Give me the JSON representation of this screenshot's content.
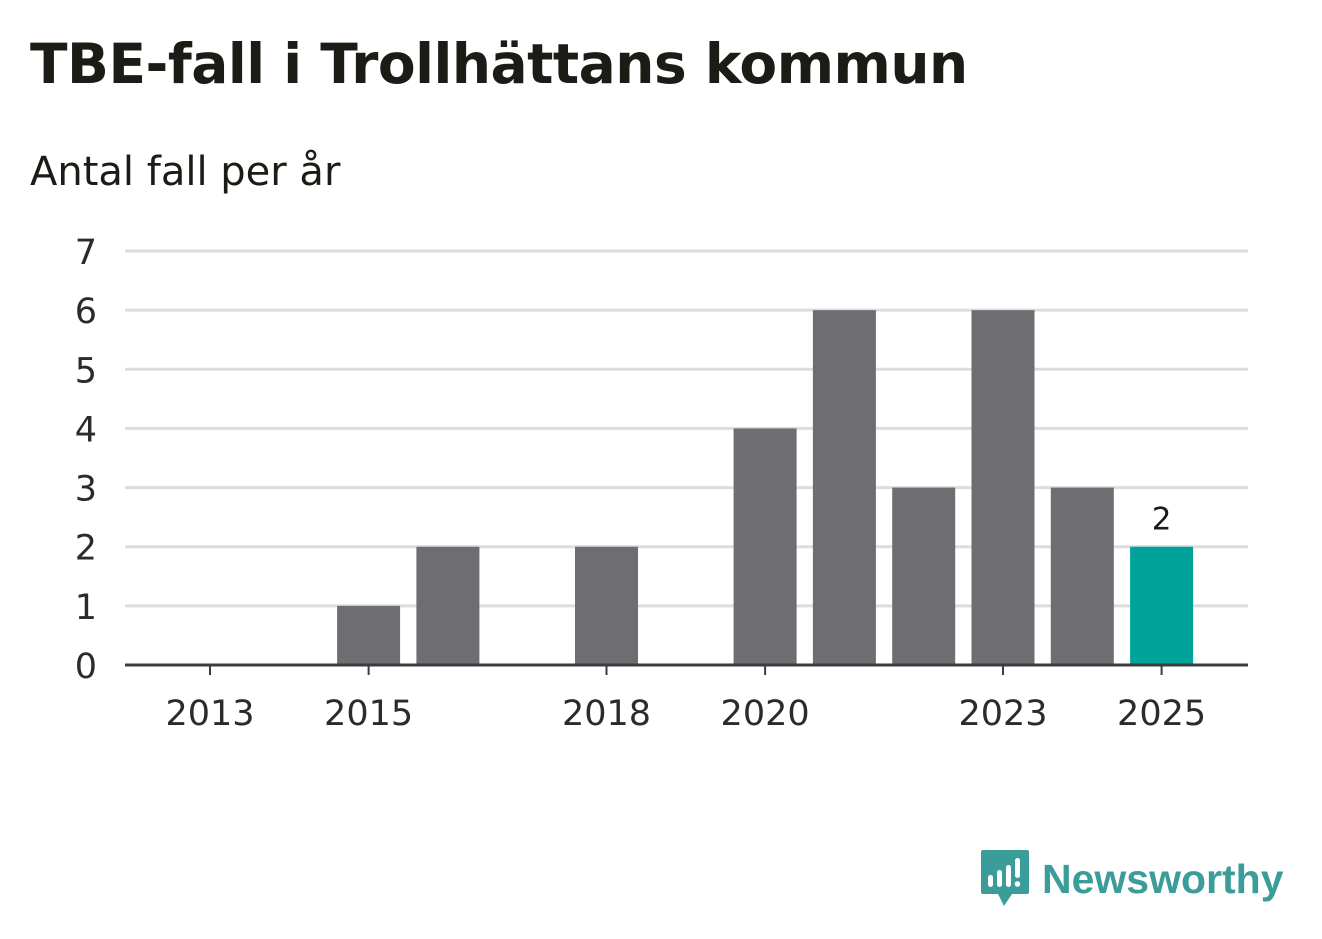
{
  "title": "TBE-fall i Trollhättans kommun",
  "subtitle": "Antal fall per år",
  "brand": {
    "name": "Newsworthy",
    "icon": "newsworthy-logo-icon",
    "color": "#3a9d99"
  },
  "colors": {
    "bar": "#6e6d72",
    "highlight": "#00a39a",
    "grid": "#dddddd",
    "axis": "#3c3c3c",
    "text": "#2b2b2b"
  },
  "chart_data": {
    "type": "bar",
    "title": "TBE-fall i Trollhättans kommun",
    "subtitle": "Antal fall per år",
    "xlabel": "",
    "ylabel": "",
    "categories": [
      2013,
      2014,
      2015,
      2016,
      2017,
      2018,
      2019,
      2020,
      2021,
      2022,
      2023,
      2024,
      2025
    ],
    "values": [
      0,
      0,
      1,
      2,
      0,
      2,
      0,
      4,
      6,
      3,
      6,
      3,
      2
    ],
    "x_tick_labels": [
      "2013",
      "2015",
      "2018",
      "2020",
      "2023",
      "2025"
    ],
    "ylim": [
      0,
      7
    ],
    "yticks": [
      0,
      1,
      2,
      3,
      4,
      5,
      6,
      7
    ],
    "grid": true,
    "highlight": {
      "category": 2025,
      "label": "2"
    }
  }
}
